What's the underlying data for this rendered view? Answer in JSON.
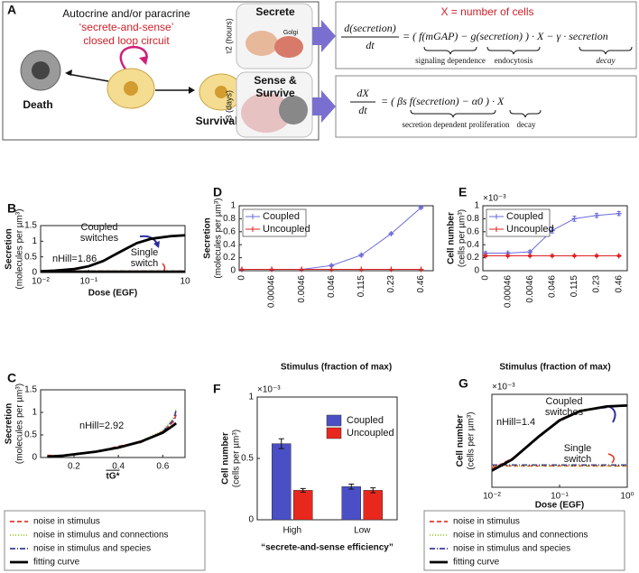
{
  "panel_a": {
    "label": "A",
    "title_line1": "Autocrine and/or paracrine",
    "title_line2": "‘secrete-and-sense’",
    "title_line3": "closed loop circuit",
    "death": "Death",
    "survival": "Survival",
    "secrete": "Secrete",
    "tau2": "τ2 (hours)",
    "golgi": "Golgi",
    "sense_line1": "Sense &",
    "sense_line2": "Survive",
    "tau3": "τ3 (days)",
    "x_def": "X = number of cells",
    "eq1": {
      "numerator": "d(secretion)",
      "denominator": "dt",
      "rhs": "= ( f(mGAP) − g(secretion) ) · X − γ · secretion",
      "brace_labels": [
        "signaling dependence",
        "endocytosis",
        "decay"
      ]
    },
    "eq2": {
      "numerator": "dX",
      "denominator": "dt",
      "rhs": "= (     βs f(secretion)          − α0 ) · X",
      "brace_labels": [
        "secretion dependent proliferation",
        "decay"
      ]
    }
  },
  "chart_data": [
    {
      "panel": "B",
      "type": "line",
      "xscale": "log",
      "x": [
        0.01,
        0.02,
        0.05,
        0.1,
        0.2,
        0.5,
        1,
        2,
        5,
        10
      ],
      "xlim": [
        0.01,
        10
      ],
      "xticks": [
        {
          "value": 0.01,
          "label": "10⁻²"
        },
        {
          "value": 0.1,
          "label": "10⁻¹"
        },
        {
          "value": 10,
          "label": "10"
        }
      ],
      "ylim": [
        0,
        1.5
      ],
      "yticks": [
        0,
        0.5,
        1,
        1.5
      ],
      "ylabel": "Secretion",
      "ylabel2": "(molecules per µm³)",
      "xlabel": "Dose (EGF)",
      "annotation_coupled": [
        "Coupled",
        "switches"
      ],
      "annotation_single": [
        "Single",
        "switch"
      ],
      "n_hill": "nHill=1.86",
      "series": [
        {
          "name": "noise in stimulus",
          "color": "#e8392b",
          "dash": "5,3",
          "values": [
            0.05,
            0.06,
            0.12,
            0.21,
            0.38,
            0.71,
            0.95,
            1.09,
            1.17,
            1.2
          ]
        },
        {
          "name": "noise in stimulus and connections",
          "color": "#9acd32",
          "dash": "1,2",
          "values": [
            0.05,
            0.07,
            0.12,
            0.2,
            0.37,
            0.7,
            0.94,
            1.08,
            1.17,
            1.2
          ]
        },
        {
          "name": "noise in stimulus and species",
          "color": "#3a3a9a",
          "dash": "6,2,1,2",
          "values": [
            0.04,
            0.06,
            0.11,
            0.21,
            0.38,
            0.7,
            0.95,
            1.09,
            1.16,
            1.19
          ]
        },
        {
          "name": "fitting curve",
          "color": "#000000",
          "dash": null,
          "values": [
            0.04,
            0.06,
            0.11,
            0.2,
            0.37,
            0.7,
            0.94,
            1.08,
            1.16,
            1.19
          ]
        }
      ],
      "series_single": [
        {
          "color": "#e8392b",
          "dash": "5,3",
          "values": [
            0.05,
            0.05,
            0.05,
            0.05,
            0.05,
            0.05,
            0.05,
            0.05,
            0.05,
            0.05
          ]
        },
        {
          "color": "#9acd32",
          "dash": "1,2",
          "values": [
            0.05,
            0.05,
            0.05,
            0.05,
            0.05,
            0.05,
            0.05,
            0.05,
            0.05,
            0.05
          ]
        },
        {
          "color": "#3a3a9a",
          "dash": "6,2,1,2",
          "values": [
            0.04,
            0.04,
            0.04,
            0.04,
            0.04,
            0.04,
            0.04,
            0.04,
            0.04,
            0.04
          ]
        },
        {
          "color": "#000000",
          "dash": null,
          "values": [
            0.03,
            0.03,
            0.03,
            0.03,
            0.03,
            0.03,
            0.03,
            0.03,
            0.03,
            0.03
          ]
        }
      ]
    },
    {
      "panel": "C",
      "type": "line",
      "x": [
        0.08,
        0.15,
        0.2,
        0.3,
        0.4,
        0.5,
        0.6,
        0.65,
        0.66
      ],
      "xlim": [
        0.05,
        0.7
      ],
      "xticks": [
        0.2,
        0.4,
        0.6
      ],
      "ylim": [
        0,
        1.5
      ],
      "yticks": [
        0,
        0.5,
        1,
        1.5
      ],
      "ylabel": "Secretion",
      "ylabel2": "(molecules per µm³)",
      "xlabel": "tG*",
      "n_hill": "nHill=2.92",
      "series": [
        {
          "color": "#e8392b",
          "dash": "5,3",
          "values": [
            0.05,
            0.03,
            0.08,
            0.12,
            0.25,
            0.33,
            0.58,
            0.8,
            0.95
          ]
        },
        {
          "color": "#9acd32",
          "dash": "1,2",
          "values": [
            0.03,
            0.05,
            0.06,
            0.14,
            0.2,
            0.36,
            0.6,
            0.9,
            1.1
          ]
        },
        {
          "color": "#3a3a9a",
          "dash": "6,2,1,2",
          "values": [
            0.02,
            0.04,
            0.08,
            0.13,
            0.23,
            0.34,
            0.57,
            0.85,
            1.05
          ]
        },
        {
          "color": "#000000",
          "dash": null,
          "values": [
            0.02,
            0.04,
            0.07,
            0.13,
            0.22,
            0.35,
            0.55,
            0.72,
            0.76
          ]
        }
      ]
    },
    {
      "panel": "D",
      "type": "line",
      "categories": [
        "0",
        "0.00046",
        "0.0046",
        "0.046",
        "0.115",
        "0.23",
        "0.46"
      ],
      "ylim": [
        0,
        1
      ],
      "yticks": [
        0,
        0.2,
        0.4,
        0.6,
        0.8,
        1
      ],
      "ylabel": "Secretion",
      "ylabel2": "(molecules per µm³)",
      "xlabel": "Stimulus (fraction of max)",
      "legend": "upper left",
      "series": [
        {
          "name": "Coupled",
          "color": "#6b6bdb",
          "values": [
            0.02,
            0.02,
            0.02,
            0.08,
            0.24,
            0.57,
            0.97
          ],
          "errors": [
            0.005,
            0.005,
            0.005,
            0.015,
            0.02,
            0.015,
            0.015
          ]
        },
        {
          "name": "Uncoupled",
          "color": "#e02020",
          "values": [
            0.02,
            0.02,
            0.02,
            0.02,
            0.02,
            0.02,
            0.02
          ],
          "errors": [
            0.003,
            0.003,
            0.003,
            0.003,
            0.003,
            0.003,
            0.003
          ]
        }
      ]
    },
    {
      "panel": "E",
      "type": "line",
      "categories": [
        "0",
        "0.00046",
        "0.0046",
        "0.046",
        "0.115",
        "0.23",
        "0.46"
      ],
      "ylim": [
        0,
        1
      ],
      "yticks": [
        0,
        0.2,
        0.4,
        0.6,
        0.8,
        1
      ],
      "multiplier": "×10⁻³",
      "ylabel": "Cell number",
      "ylabel2": "(cells per µm³)",
      "xlabel": "Stimulus (fraction of max)",
      "legend": "upper left",
      "series": [
        {
          "name": "Coupled",
          "color": "#6b6bdb",
          "values": [
            0.27,
            0.27,
            0.29,
            0.62,
            0.8,
            0.85,
            0.88
          ],
          "errors": [
            0.02,
            0.02,
            0.02,
            0.04,
            0.04,
            0.03,
            0.03
          ]
        },
        {
          "name": "Uncoupled",
          "color": "#e02020",
          "values": [
            0.23,
            0.23,
            0.23,
            0.23,
            0.23,
            0.23,
            0.23
          ],
          "errors": [
            0.015,
            0.015,
            0.015,
            0.015,
            0.015,
            0.015,
            0.015
          ]
        }
      ]
    },
    {
      "panel": "F",
      "type": "bar",
      "categories": [
        "High",
        "Low"
      ],
      "ylim": [
        0,
        1
      ],
      "yticks": [
        0,
        0.5,
        1
      ],
      "multiplier": "×10⁻³",
      "ylabel": "Cell number",
      "ylabel2": "(cells per µm³)",
      "xlabel": "“secrete-and-sense efficiency”",
      "legend": "upper right",
      "series": [
        {
          "name": "Coupled",
          "color": "#4b4fc6",
          "values": [
            0.62,
            0.27
          ],
          "errors": [
            0.04,
            0.02
          ]
        },
        {
          "name": "Uncoupled",
          "color": "#e8281d",
          "values": [
            0.24,
            0.24
          ],
          "errors": [
            0.015,
            0.02
          ]
        }
      ]
    },
    {
      "panel": "G",
      "type": "line",
      "xscale": "log",
      "x": [
        0.01,
        0.02,
        0.05,
        0.1,
        0.2,
        0.5,
        1
      ],
      "xlim": [
        0.01,
        1
      ],
      "xticks": [
        {
          "value": 0.01,
          "label": "10⁻²"
        },
        {
          "value": 0.1,
          "label": "10⁻¹"
        },
        {
          "value": 1,
          "label": "10⁰"
        }
      ],
      "ylim": [
        0,
        1
      ],
      "multiplier": "×10⁻³",
      "ylabel": "Cell number",
      "ylabel2": "(cells per µm³)",
      "xlabel": "Dose (EGF)",
      "annotation_coupled": [
        "Coupled",
        "switches"
      ],
      "annotation_single": [
        "Single",
        "switch"
      ],
      "n_hill": "nHill=1.4",
      "series": [
        {
          "name": "noise in stimulus",
          "color": "#e8392b",
          "dash": "5,3",
          "values": [
            0.2,
            0.31,
            0.55,
            0.73,
            0.82,
            0.87,
            0.88
          ]
        },
        {
          "name": "noise in stimulus and connections",
          "color": "#9acd32",
          "dash": "1,2",
          "values": [
            0.19,
            0.3,
            0.56,
            0.72,
            0.83,
            0.87,
            0.89
          ]
        },
        {
          "name": "noise in stimulus and species",
          "color": "#3a3a9a",
          "dash": "6,2,1,2",
          "values": [
            0.18,
            0.3,
            0.54,
            0.72,
            0.82,
            0.86,
            0.88
          ]
        },
        {
          "name": "fitting curve",
          "color": "#000000",
          "dash": null,
          "values": [
            0.18,
            0.3,
            0.55,
            0.72,
            0.82,
            0.87,
            0.88
          ]
        }
      ],
      "series_single": [
        {
          "color": "#e8392b",
          "dash": "5,3",
          "values": [
            0.23,
            0.23,
            0.23,
            0.23,
            0.23,
            0.23,
            0.23
          ]
        },
        {
          "color": "#3a3a9a",
          "dash": "6,2,1,2",
          "values": [
            0.24,
            0.24,
            0.24,
            0.24,
            0.24,
            0.24,
            0.24
          ]
        },
        {
          "color": "#9acd32",
          "dash": "1,2",
          "values": [
            0.23,
            0.23,
            0.23,
            0.23,
            0.23,
            0.23,
            0.23
          ]
        }
      ]
    }
  ]
}
